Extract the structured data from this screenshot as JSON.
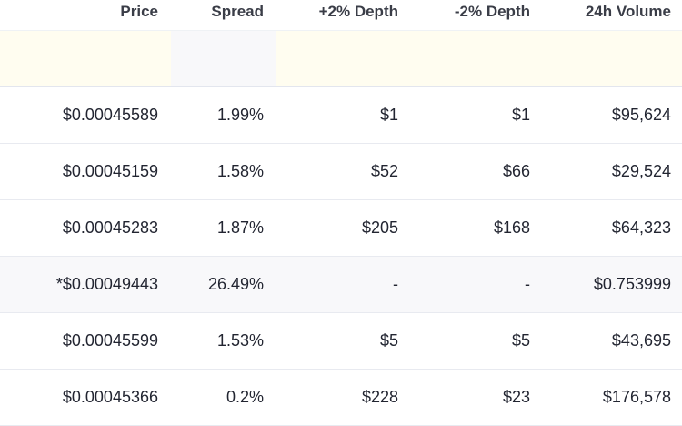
{
  "headers": {
    "price": "Price",
    "spread": "Spread",
    "plus_depth": "+2% Depth",
    "minus_depth": "-2% Depth",
    "volume": "24h Volume"
  },
  "rows": [
    {
      "price": "$0.00045589",
      "spread": "1.99%",
      "plus_depth": "$1",
      "minus_depth": "$1",
      "volume": "$95,624",
      "gray": false
    },
    {
      "price": "$0.00045159",
      "spread": "1.58%",
      "plus_depth": "$52",
      "minus_depth": "$66",
      "volume": "$29,524",
      "gray": false
    },
    {
      "price": "$0.00045283",
      "spread": "1.87%",
      "plus_depth": "$205",
      "minus_depth": "$168",
      "volume": "$64,323",
      "gray": false
    },
    {
      "price": "*$0.00049443",
      "spread": "26.49%",
      "plus_depth": "-",
      "minus_depth": "-",
      "volume": "$0.753999",
      "gray": true
    },
    {
      "price": "$0.00045599",
      "spread": "1.53%",
      "plus_depth": "$5",
      "minus_depth": "$5",
      "volume": "$43,695",
      "gray": false
    },
    {
      "price": "$0.00045366",
      "spread": "0.2%",
      "plus_depth": "$228",
      "minus_depth": "$23",
      "volume": "$176,578",
      "gray": false
    }
  ]
}
